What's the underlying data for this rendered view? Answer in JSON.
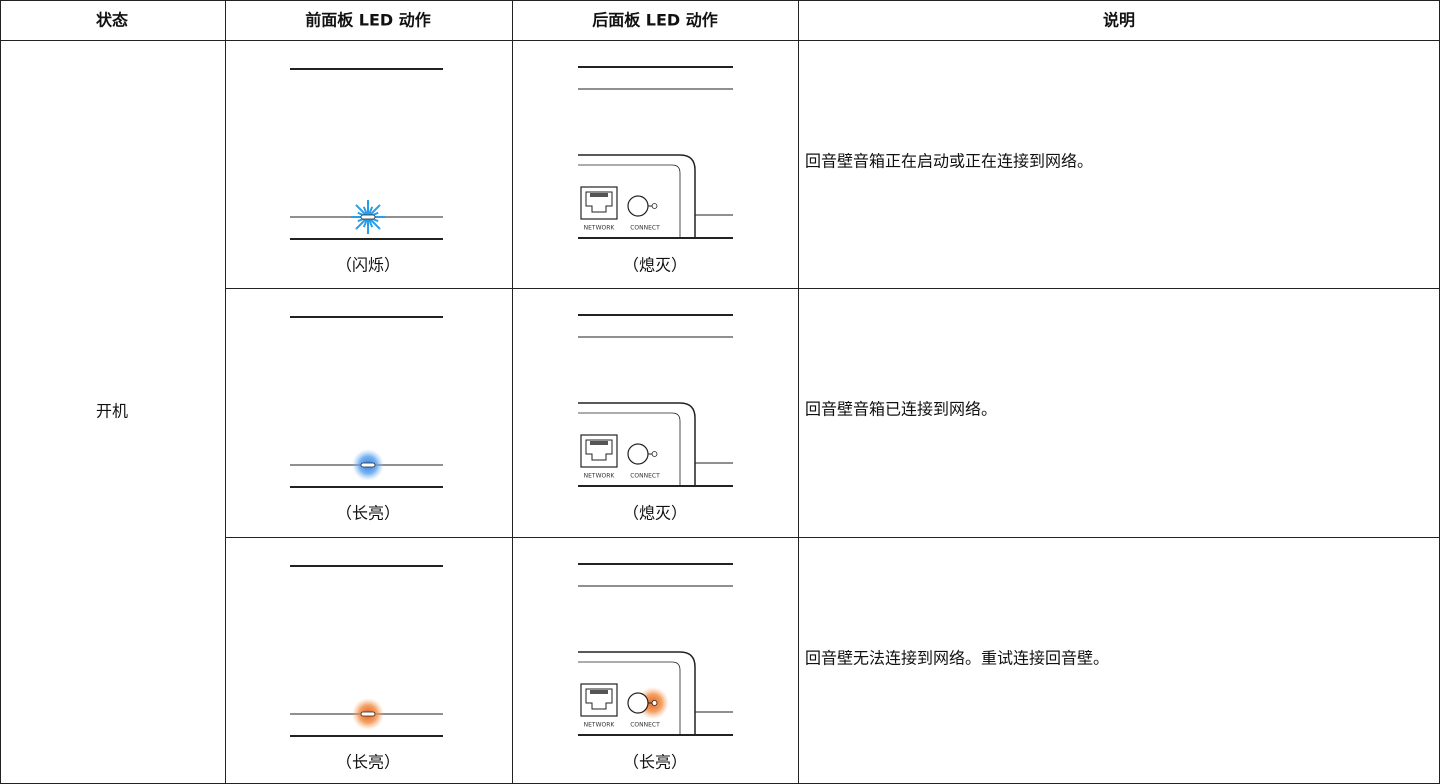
{
  "table": {
    "header": [
      "状态",
      "前面板 LED 动作",
      "后面板 LED 动作",
      "说明"
    ],
    "state": "开机",
    "rows": [
      {
        "front": "（闪烁）",
        "back": "（熄灭）",
        "description": "回音壁音箱正在启动或正在连接到网络。"
      },
      {
        "front": "（长亮）",
        "back": "（熄灭）",
        "description": "回音壁音箱已连接到网络。"
      },
      {
        "front": "（长亮）",
        "back": "（长亮）",
        "description": "回音壁无法连接到网络。重试连接回音壁。"
      }
    ],
    "port_labels": {
      "network": "NETWORK",
      "connect": "CONNECT"
    }
  }
}
